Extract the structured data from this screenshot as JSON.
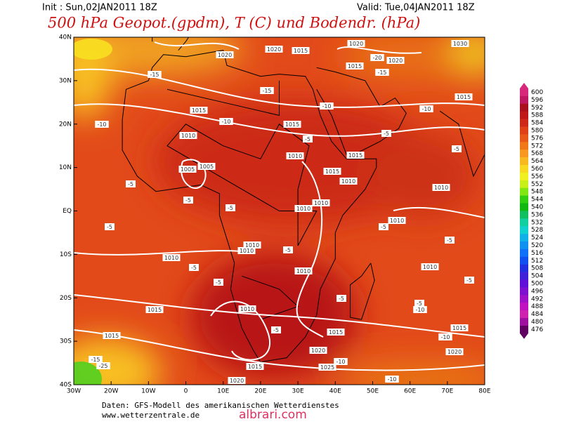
{
  "header": {
    "init": "Init : Sun,02JAN2011 18Z",
    "valid": "Valid: Tue,04JAN2011 18Z",
    "title": "500 hPa Geopot.(gpdm), T (C) und Bodendr. (hPa)"
  },
  "map": {
    "lat_labels": [
      "40N",
      "30N",
      "20N",
      "10N",
      "EQ",
      "10S",
      "20S",
      "30S",
      "40S"
    ],
    "lon_labels": [
      "30W",
      "20W",
      "10W",
      "0",
      "10E",
      "20E",
      "30E",
      "40E",
      "50E",
      "60E",
      "70E",
      "80E"
    ],
    "contour_labels": [
      "1020",
      "1020",
      "1015",
      "1020",
      "1030",
      "1015",
      "1010",
      "1015",
      "1010",
      "1005",
      "1005",
      "1015",
      "1015",
      "1010",
      "1010",
      "1010",
      "1010",
      "1010",
      "1010",
      "1010",
      "1010",
      "1010",
      "1010",
      "1015",
      "1010",
      "1015",
      "1015",
      "1015",
      "1020",
      "1020",
      "1025",
      "1015",
      "1020",
      "1020",
      "1015",
      "1015",
      "-15",
      "-15",
      "-15",
      "-10",
      "-10",
      "-10",
      "-10",
      "-5",
      "-5",
      "-5",
      "-5",
      "-5",
      "-5",
      "-5",
      "-5",
      "-5",
      "-5",
      "-5",
      "-5",
      "-5",
      "-10",
      "-10",
      "-10",
      "-10",
      "-15",
      "-25",
      "-20",
      "-5",
      "-5",
      "-5"
    ]
  },
  "colorbar": {
    "levels": [
      600,
      596,
      592,
      588,
      584,
      580,
      576,
      572,
      568,
      564,
      560,
      556,
      552,
      548,
      544,
      540,
      536,
      532,
      528,
      524,
      520,
      516,
      512,
      508,
      504,
      500,
      496,
      492,
      488,
      484,
      480,
      476
    ],
    "colors": [
      "#d8287c",
      "#c01860",
      "#a8101c",
      "#c01818",
      "#d02818",
      "#e04018",
      "#e85818",
      "#f07818",
      "#f89820",
      "#f8b820",
      "#f8d820",
      "#f0f020",
      "#c8f018",
      "#80e810",
      "#30d010",
      "#10b810",
      "#10c060",
      "#10d0a0",
      "#10d0d0",
      "#10b0e8",
      "#1090f0",
      "#1070f8",
      "#1050f0",
      "#2030e0",
      "#4020d8",
      "#6010d8",
      "#8010d0",
      "#a010c8",
      "#c010c0",
      "#d020b0",
      "#a010a0",
      "#600060"
    ]
  },
  "footer": {
    "source": "Daten: GFS-Modell des amerikanischen Wetterdienstes",
    "url": "www.wetterzentrale.de",
    "watermark": "albrari.com"
  }
}
